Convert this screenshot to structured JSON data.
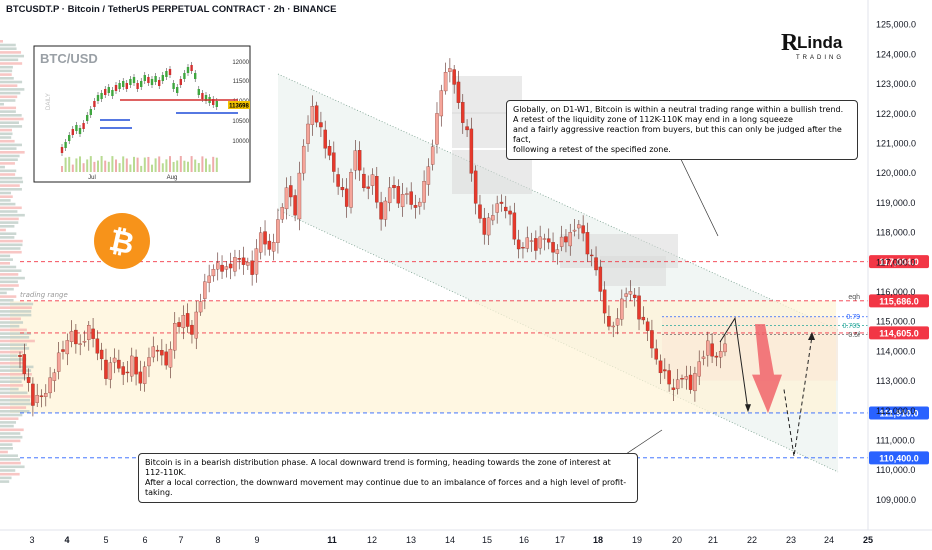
{
  "header": {
    "title": "BTCUSDT.P · Bitcoin / TetherUS PERPETUAL CONTRACT · 2h · BINANCE"
  },
  "logo": {
    "text_main": "Linda",
    "text_sub": "TRADING"
  },
  "inset": {
    "title": "BTC/USD",
    "side_label": "DAILY",
    "price_tag": "113698",
    "months": [
      "Jul",
      "Aug"
    ],
    "ticks": [
      "12000",
      "11500",
      "11000",
      "10500",
      "10000"
    ]
  },
  "chart_data": {
    "type": "candlestick",
    "title": "BTCUSDT.P · Bitcoin / TetherUS PERPETUAL CONTRACT · 2h · BINANCE",
    "y_ticks": [
      109000,
      110000,
      111000,
      112000,
      113000,
      114000,
      115000,
      116000,
      117000,
      118000,
      119000,
      120000,
      121000,
      122000,
      123000,
      124000,
      125000
    ],
    "ylim": [
      108500,
      125500
    ],
    "x_labels": [
      "3",
      "4",
      "5",
      "6",
      "7",
      "8",
      "9",
      "11",
      "12",
      "13",
      "14",
      "15",
      "16",
      "17",
      "18",
      "19",
      "20",
      "21",
      "22",
      "23",
      "24",
      "25"
    ],
    "bold_x_labels": [
      "4",
      "11",
      "18",
      "25"
    ],
    "price_levels": [
      {
        "label": "117,004.0",
        "value": 117004,
        "color": "#f23645"
      },
      {
        "label": "115,686.0",
        "value": 115686,
        "color": "#f23645",
        "tag": "eqh"
      },
      {
        "label": "114,605.0",
        "value": 114605,
        "color": "#f23645"
      },
      {
        "label": "111,910.0",
        "value": 111910,
        "color": "#2962ff"
      },
      {
        "label": "110,400.0",
        "value": 110400,
        "color": "#2962ff"
      }
    ],
    "fib_levels": [
      {
        "label": "0.79",
        "value": 115150,
        "color": "#2962ff"
      },
      {
        "label": "0.705",
        "value": 114850,
        "color": "#26a69a"
      },
      {
        "label": "0.5f",
        "value": 114550,
        "color": "#555555"
      }
    ],
    "zone_label": "trading range",
    "close_path": [
      [
        0,
        113800
      ],
      [
        3,
        112300
      ],
      [
        6,
        112600
      ],
      [
        9,
        113800
      ],
      [
        12,
        114600
      ],
      [
        14,
        114100
      ],
      [
        16,
        114800
      ],
      [
        18,
        114000
      ],
      [
        20,
        113200
      ],
      [
        22,
        113800
      ],
      [
        24,
        113100
      ],
      [
        26,
        113700
      ],
      [
        28,
        112900
      ],
      [
        30,
        113900
      ],
      [
        32,
        114100
      ],
      [
        34,
        113500
      ],
      [
        36,
        114800
      ],
      [
        38,
        115100
      ],
      [
        40,
        114600
      ],
      [
        42,
        115800
      ],
      [
        44,
        116600
      ],
      [
        46,
        116900
      ],
      [
        48,
        116700
      ],
      [
        50,
        117100
      ],
      [
        52,
        117000
      ],
      [
        54,
        116700
      ],
      [
        56,
        118000
      ],
      [
        58,
        117300
      ],
      [
        60,
        118300
      ],
      [
        62,
        119500
      ],
      [
        64,
        118700
      ],
      [
        66,
        121000
      ],
      [
        68,
        122200
      ],
      [
        70,
        121400
      ],
      [
        72,
        120500
      ],
      [
        74,
        119600
      ],
      [
        76,
        119000
      ],
      [
        78,
        120800
      ],
      [
        80,
        119400
      ],
      [
        82,
        119800
      ],
      [
        84,
        118400
      ],
      [
        86,
        119600
      ],
      [
        88,
        119100
      ],
      [
        90,
        119300
      ],
      [
        92,
        118700
      ],
      [
        94,
        119600
      ],
      [
        96,
        120900
      ],
      [
        98,
        122900
      ],
      [
        100,
        123600
      ],
      [
        102,
        122300
      ],
      [
        104,
        121300
      ],
      [
        106,
        118900
      ],
      [
        108,
        118000
      ],
      [
        110,
        118700
      ],
      [
        112,
        119000
      ],
      [
        114,
        118500
      ],
      [
        116,
        117300
      ],
      [
        118,
        117800
      ],
      [
        120,
        117500
      ],
      [
        122,
        117900
      ],
      [
        124,
        117300
      ],
      [
        126,
        117700
      ],
      [
        128,
        117900
      ],
      [
        130,
        118300
      ],
      [
        132,
        117400
      ],
      [
        134,
        116800
      ],
      [
        136,
        115200
      ],
      [
        138,
        114700
      ],
      [
        140,
        115700
      ],
      [
        142,
        116100
      ],
      [
        144,
        115200
      ],
      [
        146,
        114700
      ],
      [
        148,
        113600
      ],
      [
        150,
        113200
      ],
      [
        152,
        112700
      ],
      [
        154,
        113200
      ],
      [
        156,
        112800
      ],
      [
        158,
        113600
      ],
      [
        160,
        114200
      ],
      [
        162,
        113700
      ],
      [
        164,
        114300
      ]
    ]
  },
  "callout_top": "Globally, on D1-W1, Bitcoin is within a neutral trading range within a bullish trend.\nA retest of the liquidity zone of 112K-110K may end in a long squeeze\nand a fairly aggressive reaction from buyers, but this can only be judged after the fact,\nfollowing a retest of the specified zone.",
  "callout_bottom": "Bitcoin is in a bearish distribution phase. A local downward trend is forming, heading towards the zone of interest at 112-110K.\nAfter a local correction, the downward movement may continue due to an imbalance of forces and a high level of profit-taking.",
  "colors": {
    "up": "#26a69a",
    "down": "#ef5350",
    "candle_up": "#f5a59a",
    "candle_down": "#e6392c",
    "level_red": "#f23645",
    "level_blue": "#2962ff",
    "zone": "#fff3d6",
    "channel": "#eef4f1"
  }
}
